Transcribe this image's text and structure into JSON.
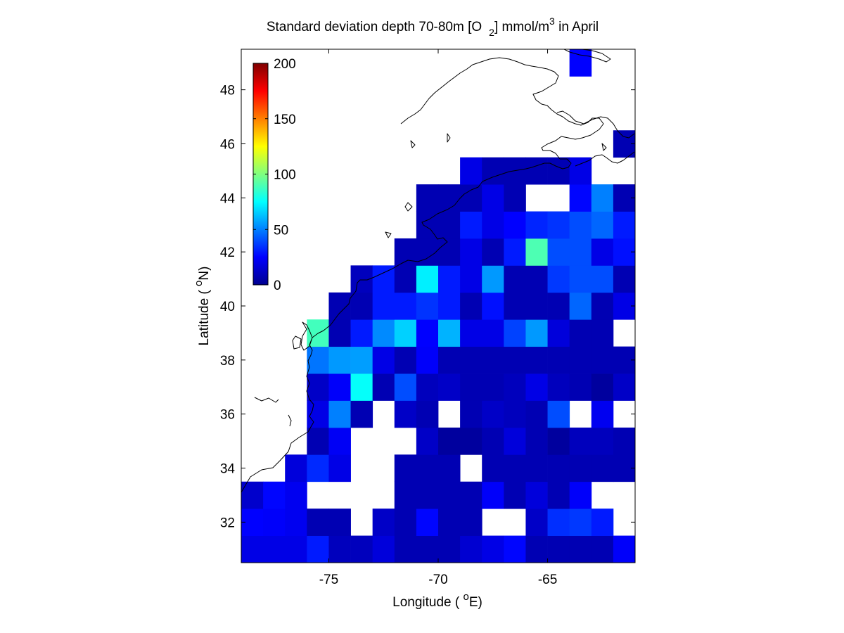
{
  "chart_data": {
    "type": "heatmap",
    "title": {
      "prefix": "Standard deviation depth 70-80m [O",
      "subscript": "2",
      "middle": "] mmol/m",
      "superscript": "3",
      "suffix": " in April"
    },
    "xlabel": {
      "prefix": "Longitude ( ",
      "superscript": "o",
      "suffix": "E)"
    },
    "ylabel": {
      "prefix": "Latitude ( ",
      "superscript": "o",
      "suffix": "N)"
    },
    "xlim": [
      -79,
      -61
    ],
    "ylim": [
      30.5,
      49.5
    ],
    "xticks": [
      -75,
      -70,
      -65
    ],
    "xtick_labels": [
      "-75",
      "-70",
      "-65"
    ],
    "yticks": [
      32,
      34,
      36,
      38,
      40,
      42,
      44,
      46,
      48
    ],
    "ytick_labels": [
      "32",
      "34",
      "36",
      "38",
      "40",
      "42",
      "44",
      "46",
      "48"
    ],
    "grid": false,
    "colormap": "jet",
    "colorbar": {
      "range": [
        0,
        200
      ],
      "ticks": [
        0,
        50,
        100,
        150,
        200
      ],
      "tick_labels": [
        "0",
        "50",
        "100",
        "150",
        "200"
      ],
      "placement": "inside-top-left"
    },
    "cell_size_deg": 1,
    "lon_start": -79,
    "lat_start": 30.5,
    "rows": [
      [
        20,
        20,
        20,
        30,
        12,
        12,
        18,
        10,
        10,
        10,
        16,
        20,
        26,
        10,
        10,
        10,
        10,
        24
      ],
      [
        25,
        24,
        22,
        10,
        10,
        null,
        14,
        10,
        26,
        10,
        10,
        null,
        null,
        14,
        34,
        36,
        30,
        null
      ],
      [
        15,
        26,
        22,
        null,
        null,
        null,
        null,
        10,
        10,
        10,
        10,
        24,
        10,
        18,
        10,
        24,
        null,
        null
      ],
      [
        null,
        null,
        18,
        33,
        20,
        null,
        null,
        10,
        10,
        10,
        null,
        10,
        10,
        10,
        10,
        10,
        10,
        10
      ],
      [
        null,
        null,
        null,
        10,
        23,
        null,
        null,
        null,
        14,
        6,
        6,
        10,
        18,
        10,
        6,
        12,
        12,
        10
      ],
      [
        null,
        null,
        null,
        20,
        50,
        10,
        null,
        14,
        10,
        null,
        10,
        14,
        12,
        10,
        40,
        null,
        22,
        null
      ],
      [
        null,
        null,
        null,
        14,
        24,
        76,
        10,
        40,
        12,
        14,
        10,
        10,
        12,
        20,
        12,
        10,
        6,
        14
      ],
      [
        null,
        null,
        null,
        48,
        55,
        56,
        20,
        10,
        24,
        10,
        10,
        10,
        10,
        10,
        10,
        10,
        10,
        10
      ],
      [
        null,
        null,
        null,
        88,
        10,
        30,
        52,
        66,
        25,
        60,
        20,
        20,
        38,
        55,
        18,
        10,
        10,
        null
      ],
      [
        null,
        null,
        null,
        null,
        10,
        10,
        30,
        30,
        35,
        30,
        10,
        28,
        10,
        10,
        10,
        45,
        10,
        20
      ],
      [
        null,
        null,
        null,
        null,
        null,
        12,
        30,
        10,
        72,
        30,
        20,
        55,
        10,
        10,
        36,
        40,
        40,
        10
      ],
      [
        null,
        null,
        null,
        null,
        null,
        null,
        null,
        10,
        10,
        10,
        20,
        10,
        30,
        90,
        40,
        40,
        20,
        28
      ],
      [
        null,
        null,
        null,
        null,
        null,
        null,
        null,
        null,
        10,
        10,
        30,
        20,
        25,
        32,
        35,
        40,
        45,
        30
      ],
      [
        null,
        null,
        null,
        null,
        null,
        null,
        null,
        null,
        10,
        10,
        10,
        20,
        10,
        null,
        null,
        26,
        50,
        10
      ],
      [
        null,
        null,
        null,
        null,
        null,
        null,
        null,
        null,
        null,
        null,
        20,
        10,
        10,
        10,
        10,
        20,
        null,
        null
      ],
      [
        null,
        null,
        null,
        null,
        null,
        null,
        null,
        null,
        null,
        null,
        null,
        null,
        null,
        null,
        null,
        null,
        null,
        10
      ],
      [
        null,
        null,
        null,
        null,
        null,
        null,
        null,
        null,
        null,
        null,
        null,
        null,
        null,
        null,
        null,
        null,
        null,
        null
      ],
      [
        null,
        null,
        null,
        null,
        null,
        null,
        null,
        null,
        null,
        null,
        null,
        null,
        null,
        null,
        null,
        null,
        null,
        null
      ],
      [
        null,
        null,
        null,
        null,
        null,
        null,
        null,
        null,
        null,
        null,
        null,
        null,
        null,
        null,
        null,
        25,
        null,
        null
      ]
    ]
  }
}
